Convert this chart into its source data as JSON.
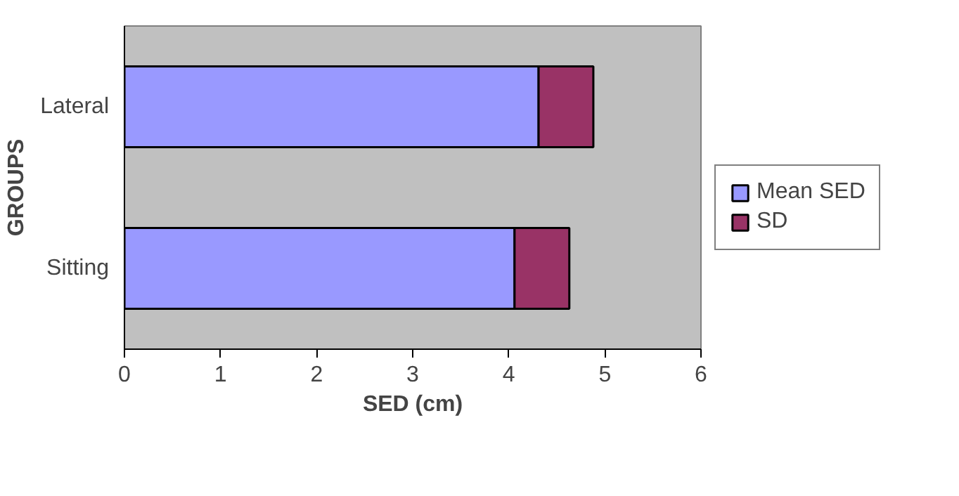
{
  "chart_data": {
    "type": "bar",
    "orientation": "horizontal",
    "stacked": true,
    "categories": [
      "Lateral",
      "Sitting"
    ],
    "series": [
      {
        "name": "Mean SED",
        "color": "#9999ff",
        "values": [
          4.31,
          4.06
        ]
      },
      {
        "name": "SD",
        "color": "#993366",
        "values": [
          0.57,
          0.57
        ]
      }
    ],
    "xlim": [
      0,
      6
    ],
    "xticks": [
      0,
      1,
      2,
      3,
      4,
      5,
      6
    ],
    "xlabel": "SED (cm)",
    "ylabel": "GROUPS",
    "grid": false,
    "legend": "right"
  }
}
